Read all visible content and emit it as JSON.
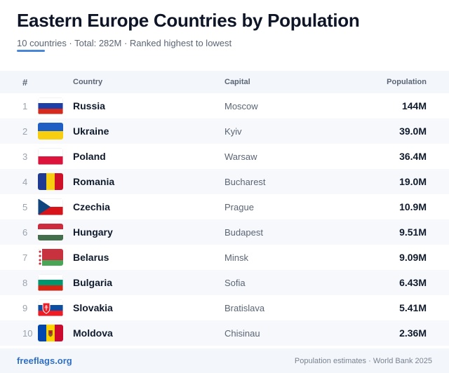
{
  "header": {
    "title": "Eastern Europe Countries by Population",
    "subtitle": "10 countries · Total: 282M · Ranked highest to lowest"
  },
  "colors": {
    "accent": "#4a86d6",
    "brand": "#2f6fc4",
    "header_bg": "#f3f6fa"
  },
  "table": {
    "columns": {
      "rank": "#",
      "country": "Country",
      "capital": "Capital",
      "population": "Population"
    },
    "rows": [
      {
        "rank": "1",
        "flag": "russia-flag",
        "country": "Russia",
        "capital": "Moscow",
        "population": "144M"
      },
      {
        "rank": "2",
        "flag": "ukraine-flag",
        "country": "Ukraine",
        "capital": "Kyiv",
        "population": "39.0M"
      },
      {
        "rank": "3",
        "flag": "poland-flag",
        "country": "Poland",
        "capital": "Warsaw",
        "population": "36.4M"
      },
      {
        "rank": "4",
        "flag": "romania-flag",
        "country": "Romania",
        "capital": "Bucharest",
        "population": "19.0M"
      },
      {
        "rank": "5",
        "flag": "czechia-flag",
        "country": "Czechia",
        "capital": "Prague",
        "population": "10.9M"
      },
      {
        "rank": "6",
        "flag": "hungary-flag",
        "country": "Hungary",
        "capital": "Budapest",
        "population": "9.51M"
      },
      {
        "rank": "7",
        "flag": "belarus-flag",
        "country": "Belarus",
        "capital": "Minsk",
        "population": "9.09M"
      },
      {
        "rank": "8",
        "flag": "bulgaria-flag",
        "country": "Bulgaria",
        "capital": "Sofia",
        "population": "6.43M"
      },
      {
        "rank": "9",
        "flag": "slovakia-flag",
        "country": "Slovakia",
        "capital": "Bratislava",
        "population": "5.41M"
      },
      {
        "rank": "10",
        "flag": "moldova-flag",
        "country": "Moldova",
        "capital": "Chisinau",
        "population": "2.36M"
      }
    ]
  },
  "footer": {
    "brand": "freeflags.org",
    "source": "Population estimates · World Bank 2025"
  }
}
